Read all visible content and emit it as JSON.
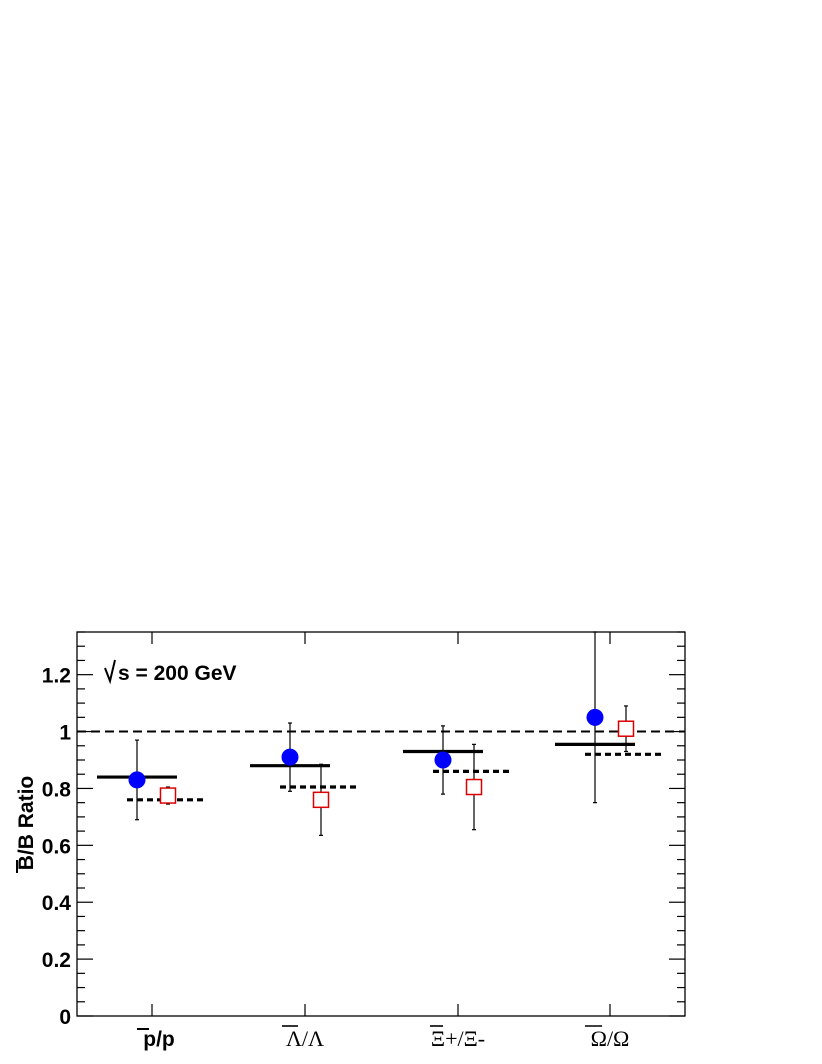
{
  "chart_data": {
    "type": "scatter",
    "annotation": "s = 200 GeV",
    "ylabel": "B/B Ratio",
    "ylim": [
      0,
      1.35
    ],
    "yticks": [
      "0",
      "0.2",
      "0.4",
      "0.6",
      "0.8",
      "1",
      "1.2"
    ],
    "categories": [
      "p/p",
      "Λ/Λ",
      "Ξ+/Ξ-",
      "Ω/Ω"
    ],
    "reference_line": 1.0,
    "series": [
      {
        "marker": "filled-circle",
        "color": "#0000ff",
        "values": [
          0.83,
          0.91,
          0.9,
          1.05
        ],
        "errors": [
          0.14,
          0.12,
          0.12,
          0.3
        ]
      },
      {
        "marker": "open-square",
        "color": "#dd0000",
        "values": [
          0.775,
          0.76,
          0.805,
          1.01
        ],
        "errors": [
          0.03,
          0.125,
          0.15,
          0.08
        ]
      },
      {
        "marker": "solid-segment",
        "color": "#000000",
        "values": [
          0.84,
          0.88,
          0.93,
          0.955
        ]
      },
      {
        "marker": "dotted-segment",
        "color": "#000000",
        "values": [
          0.76,
          0.805,
          0.86,
          0.92
        ]
      }
    ]
  }
}
